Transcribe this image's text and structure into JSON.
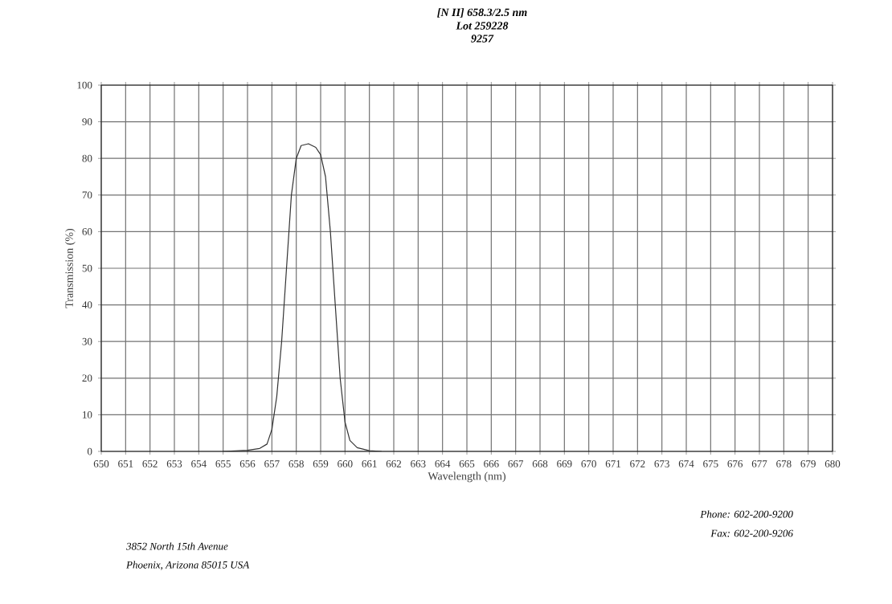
{
  "chart_data": {
    "type": "line",
    "title": "[N II] 658.3/2.5 nm",
    "subtitle": "Lot 259228",
    "xlabel": "Wavelength (nm)",
    "ylabel": "Transmission (%)",
    "annotations": [
      "9257",
      "3852 North 15th Avenue",
      "Phoenix, Arizona 85015 USA",
      "Phone:  602-200-9200",
      "Fax:  602-200-9206"
    ],
    "x": [
      655,
      656,
      656.5,
      656.8,
      657,
      657.2,
      657.4,
      657.6,
      657.8,
      658,
      658.2,
      658.5,
      658.8,
      659,
      659.2,
      659.4,
      659.6,
      659.8,
      660,
      660.2,
      660.5,
      661,
      661.5
    ],
    "series": [
      {
        "color": "#333333",
        "values": [
          0,
          0.3,
          0.8,
          2,
          6,
          15,
          30,
          50,
          70,
          80,
          83.5,
          84,
          83,
          81,
          75,
          60,
          40,
          20,
          8,
          3,
          1,
          0.2,
          0
        ]
      }
    ],
    "xlim": [
      650,
      680
    ],
    "xticks": [
      650,
      651,
      652,
      653,
      654,
      655,
      656,
      657,
      658,
      659,
      660,
      661,
      662,
      663,
      664,
      665,
      666,
      667,
      668,
      669,
      670,
      671,
      672,
      673,
      674,
      675,
      676,
      677,
      678,
      679,
      680
    ],
    "ylim": [
      0,
      100
    ],
    "yticks": [
      0,
      10,
      20,
      30,
      40,
      50,
      60,
      70,
      80,
      90,
      100
    ],
    "grid": true,
    "marker": "none",
    "line_style": "solid"
  }
}
